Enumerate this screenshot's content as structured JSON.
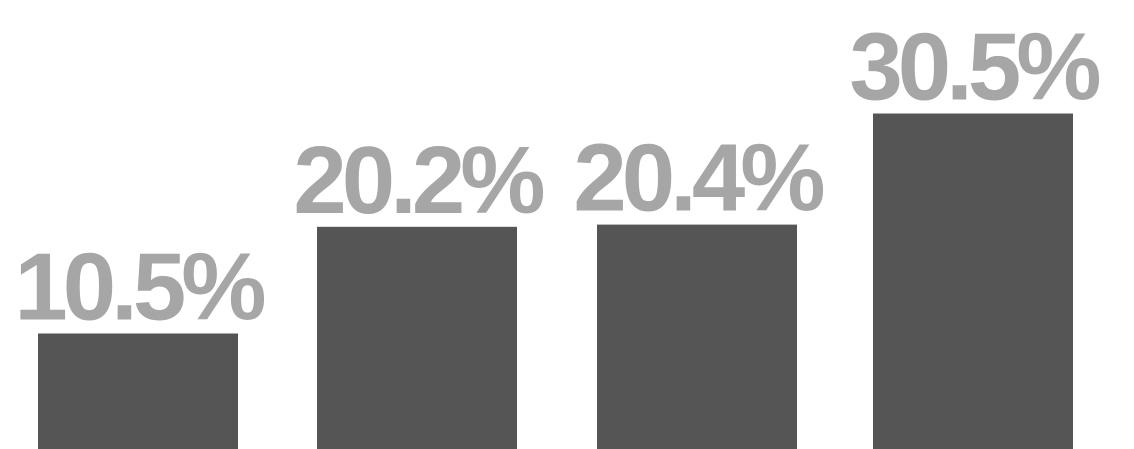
{
  "chart_data": {
    "type": "bar",
    "values": [
      10.5,
      20.2,
      20.4,
      30.5
    ],
    "value_labels": [
      "10.5%",
      "20.2%",
      "20.4%",
      "30.5%"
    ],
    "color": "#555555"
  }
}
